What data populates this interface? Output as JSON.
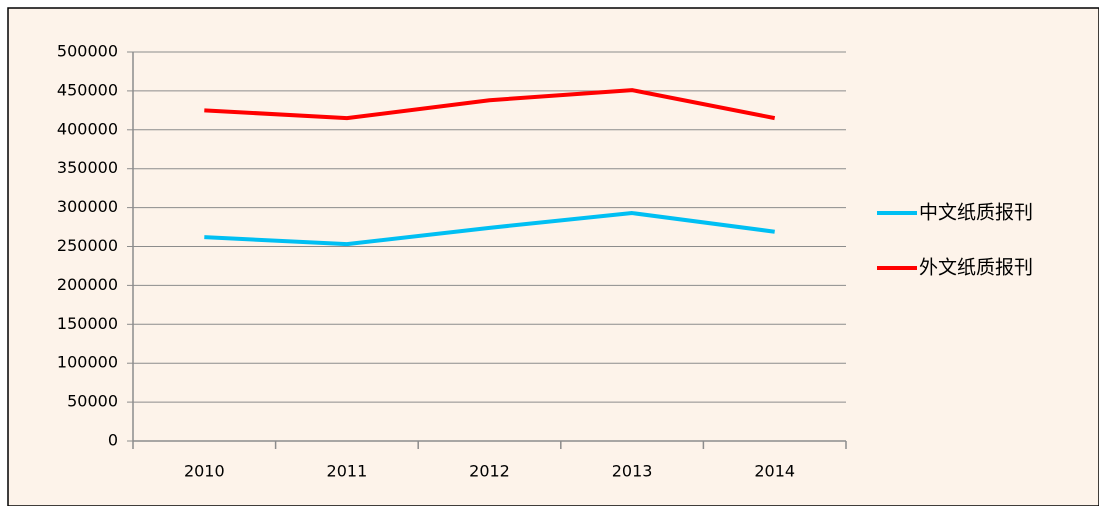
{
  "chart_data": {
    "type": "line",
    "categories": [
      "2010",
      "2011",
      "2012",
      "2013",
      "2014"
    ],
    "series": [
      {
        "name": "中文纸质报刊",
        "color": "#00bff3",
        "values": [
          262000,
          253000,
          274000,
          293000,
          269000
        ]
      },
      {
        "name": "外文纸质报刊",
        "color": "#ff0000",
        "values": [
          425000,
          415000,
          438000,
          451000,
          415000
        ]
      }
    ],
    "ylim": [
      0,
      500000
    ],
    "yticks": [
      0,
      50000,
      100000,
      150000,
      200000,
      250000,
      300000,
      350000,
      400000,
      450000,
      500000
    ],
    "grid": true,
    "legend": "right"
  }
}
